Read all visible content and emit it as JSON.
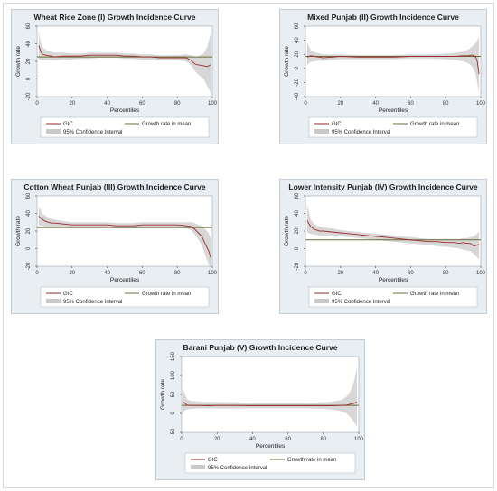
{
  "legend": {
    "gic": "GIC",
    "mean": "Growth rate in mean",
    "ci": "95% Confidence Interval"
  },
  "colors": {
    "gic": "#9b2a2a",
    "mean": "#6b6b3a",
    "ci": "#c9c9c9",
    "plot_bg": "#ffffff",
    "panel_bg": "#e9eef3"
  },
  "chart_data": [
    {
      "type": "line",
      "title": "Wheat Rice Zone (I) Growth Incidence Curve",
      "xlabel": "Percentiles",
      "ylabel": "Growth rate",
      "xlim": [
        0,
        100
      ],
      "ylim": [
        -20,
        60
      ],
      "xticks": [
        0,
        20,
        40,
        60,
        80,
        100
      ],
      "yticks": [
        -20,
        0,
        20,
        40,
        60
      ],
      "mean": 25,
      "gic": {
        "x": [
          1,
          2,
          3,
          5,
          8,
          10,
          15,
          20,
          25,
          30,
          35,
          40,
          45,
          50,
          55,
          60,
          65,
          70,
          75,
          80,
          85,
          88,
          90,
          92,
          95,
          97,
          99
        ],
        "y": [
          38,
          32,
          28,
          27,
          26,
          25,
          26,
          26,
          26,
          27,
          27,
          27,
          27,
          26,
          26,
          25,
          25,
          24,
          24,
          24,
          24,
          21,
          17,
          16,
          15,
          14,
          16
        ]
      },
      "ci_upper": [
        55,
        42,
        36,
        33,
        31,
        30,
        30,
        29,
        29,
        30,
        30,
        30,
        30,
        29,
        29,
        28,
        28,
        27,
        27,
        27,
        28,
        27,
        25,
        26,
        29,
        36,
        52
      ],
      "ci_lower": [
        22,
        22,
        21,
        21,
        21,
        21,
        22,
        22,
        23,
        23,
        24,
        24,
        24,
        23,
        23,
        22,
        22,
        21,
        21,
        21,
        20,
        15,
        9,
        5,
        0,
        -8,
        -15
      ]
    },
    {
      "type": "line",
      "title": "Mixed Punjab (II) Growth Incidence Curve",
      "xlabel": "Percentiles",
      "ylabel": "Growth rate",
      "xlim": [
        0,
        100
      ],
      "ylim": [
        -40,
        60
      ],
      "xticks": [
        0,
        20,
        40,
        60,
        80,
        100
      ],
      "yticks": [
        -40,
        -20,
        0,
        20,
        40,
        60
      ],
      "mean": 17,
      "gic": {
        "x": [
          1,
          3,
          5,
          8,
          10,
          15,
          20,
          30,
          40,
          50,
          60,
          70,
          80,
          85,
          90,
          93,
          95,
          97,
          98,
          99
        ],
        "y": [
          16,
          18,
          17,
          16,
          15,
          16,
          17,
          16,
          16,
          16,
          17,
          17,
          17,
          17,
          18,
          18,
          19,
          17,
          10,
          -8
        ]
      },
      "ci_upper": [
        38,
        26,
        23,
        21,
        20,
        20,
        20,
        19,
        19,
        19,
        20,
        20,
        21,
        22,
        24,
        27,
        31,
        36,
        40,
        44
      ],
      "ci_lower": [
        5,
        9,
        10,
        11,
        11,
        12,
        13,
        13,
        13,
        13,
        14,
        14,
        13,
        12,
        10,
        7,
        3,
        -8,
        -20,
        -34
      ]
    },
    {
      "type": "line",
      "title": "Cotton Wheat Punjab (III) Growth Incidence Curve",
      "xlabel": "Percentiles",
      "ylabel": "Growth rate",
      "xlim": [
        0,
        100
      ],
      "ylim": [
        -20,
        60
      ],
      "xticks": [
        0,
        20,
        40,
        60,
        80,
        100
      ],
      "yticks": [
        -20,
        0,
        20,
        40,
        60
      ],
      "mean": 24,
      "gic": {
        "x": [
          1,
          3,
          5,
          8,
          10,
          15,
          20,
          25,
          30,
          35,
          40,
          45,
          50,
          55,
          60,
          65,
          70,
          75,
          80,
          85,
          88,
          90,
          92,
          94,
          96,
          98,
          99
        ],
        "y": [
          37,
          33,
          31,
          29,
          29,
          28,
          27,
          27,
          27,
          27,
          27,
          26,
          26,
          26,
          27,
          27,
          27,
          27,
          27,
          26,
          25,
          22,
          18,
          14,
          5,
          -3,
          -10
        ]
      },
      "ci_upper": [
        48,
        40,
        37,
        34,
        33,
        31,
        30,
        30,
        30,
        30,
        30,
        29,
        29,
        29,
        30,
        30,
        30,
        30,
        30,
        30,
        30,
        29,
        27,
        26,
        22,
        17,
        12
      ],
      "ci_lower": [
        26,
        26,
        25,
        25,
        25,
        25,
        24,
        24,
        24,
        24,
        24,
        23,
        23,
        23,
        24,
        24,
        24,
        24,
        24,
        23,
        21,
        16,
        10,
        4,
        -8,
        -18,
        -22
      ]
    },
    {
      "type": "line",
      "title": "Lower Intensity Punjab (IV) Growth Incidence Curve",
      "xlabel": "Percentiles",
      "ylabel": "Growth rate",
      "xlim": [
        0,
        100
      ],
      "ylim": [
        -20,
        60
      ],
      "xticks": [
        0,
        20,
        40,
        60,
        80,
        100
      ],
      "yticks": [
        -20,
        0,
        20,
        40,
        60
      ],
      "mean": 10,
      "gic": {
        "x": [
          1,
          3,
          5,
          8,
          10,
          15,
          20,
          25,
          30,
          35,
          40,
          45,
          50,
          55,
          60,
          65,
          70,
          75,
          80,
          85,
          88,
          90,
          92,
          94,
          96,
          98,
          99
        ],
        "y": [
          32,
          25,
          22,
          20,
          20,
          19,
          18,
          17,
          16,
          15,
          14,
          13,
          12,
          11,
          10,
          9,
          8,
          8,
          7,
          7,
          6,
          7,
          6,
          6,
          3,
          4,
          5
        ]
      },
      "ci_upper": [
        50,
        33,
        28,
        25,
        24,
        23,
        21,
        20,
        19,
        18,
        17,
        16,
        15,
        14,
        13,
        12,
        11,
        11,
        11,
        11,
        11,
        12,
        12,
        13,
        14,
        17,
        20
      ],
      "ci_lower": [
        18,
        17,
        16,
        15,
        15,
        14,
        14,
        13,
        12,
        11,
        10,
        9,
        8,
        7,
        6,
        5,
        4,
        3,
        2,
        1,
        0,
        -1,
        -2,
        -3,
        -6,
        -10,
        -12
      ]
    },
    {
      "type": "line",
      "title": "Barani Punjab (V) Growth Incidence Curve",
      "xlabel": "Percentiles",
      "ylabel": "Growth rate",
      "xlim": [
        0,
        100
      ],
      "ylim": [
        -50,
        150
      ],
      "xticks": [
        0,
        20,
        40,
        60,
        80,
        100
      ],
      "yticks": [
        -50,
        0,
        50,
        100,
        150
      ],
      "mean": 21,
      "gic": {
        "x": [
          1,
          3,
          5,
          10,
          15,
          20,
          30,
          40,
          50,
          60,
          70,
          80,
          85,
          90,
          93,
          95,
          97,
          99
        ],
        "y": [
          30,
          22,
          21,
          21,
          20,
          21,
          21,
          20,
          20,
          20,
          20,
          20,
          20,
          21,
          22,
          24,
          26,
          30
        ]
      },
      "ci_upper": [
        60,
        38,
        33,
        31,
        30,
        30,
        29,
        28,
        28,
        28,
        28,
        29,
        31,
        35,
        44,
        55,
        78,
        120
      ],
      "ci_lower": [
        5,
        10,
        12,
        13,
        13,
        13,
        13,
        13,
        13,
        13,
        13,
        12,
        10,
        6,
        0,
        -8,
        -20,
        -35
      ]
    }
  ]
}
